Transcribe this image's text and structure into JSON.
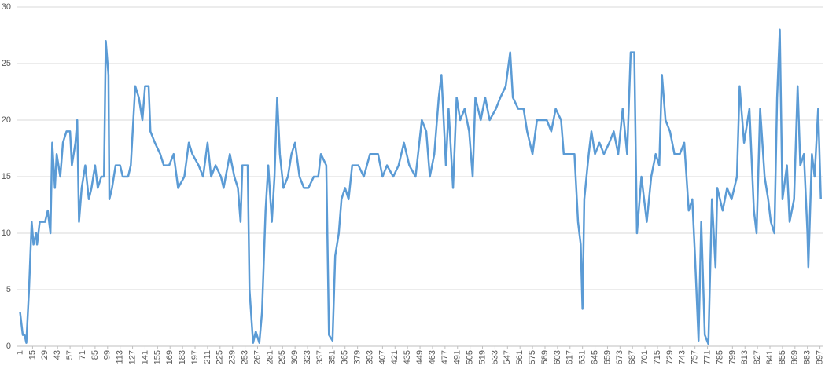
{
  "chart_data": {
    "type": "line",
    "color": "#5b9bd5",
    "grid": true,
    "xlim": [
      -3,
      900
    ],
    "ylim": [
      0,
      30
    ],
    "yticks": [
      0,
      5,
      10,
      15,
      20,
      25,
      30
    ],
    "xticks": [
      1,
      15,
      29,
      43,
      57,
      71,
      85,
      99,
      113,
      127,
      141,
      155,
      169,
      183,
      197,
      211,
      225,
      239,
      253,
      267,
      281,
      295,
      309,
      323,
      337,
      351,
      365,
      379,
      393,
      407,
      421,
      435,
      449,
      463,
      477,
      491,
      505,
      519,
      533,
      547,
      561,
      575,
      589,
      603,
      617,
      631,
      645,
      659,
      673,
      687,
      701,
      715,
      729,
      743,
      757,
      771,
      785,
      799,
      813,
      827,
      841,
      855,
      869,
      883,
      897
    ],
    "x": [
      1,
      4,
      6,
      8,
      11,
      14,
      16,
      19,
      20,
      23,
      29,
      32,
      35,
      37,
      40,
      42,
      46,
      49,
      53,
      57,
      59,
      63,
      65,
      67,
      70,
      74,
      78,
      81,
      85,
      88,
      92,
      95,
      97,
      100,
      101,
      104,
      108,
      113,
      116,
      122,
      125,
      130,
      134,
      138,
      141,
      145,
      147,
      152,
      158,
      162,
      168,
      173,
      178,
      185,
      190,
      194,
      201,
      206,
      211,
      215,
      220,
      226,
      229,
      236,
      241,
      245,
      248,
      250,
      256,
      258,
      262,
      265,
      269,
      272,
      276,
      279,
      283,
      286,
      289,
      292,
      296,
      301,
      305,
      309,
      314,
      319,
      324,
      330,
      335,
      338,
      344,
      347,
      351,
      354,
      358,
      361,
      365,
      369,
      373,
      380,
      386,
      393,
      402,
      407,
      412,
      419,
      425,
      431,
      437,
      444,
      451,
      456,
      460,
      465,
      470,
      473,
      478,
      481,
      486,
      490,
      494,
      499,
      504,
      508,
      511,
      517,
      522,
      527,
      534,
      539,
      545,
      550,
      553,
      559,
      565,
      569,
      575,
      580,
      585,
      591,
      596,
      601,
      607,
      610,
      615,
      622,
      626,
      629,
      631,
      633,
      638,
      641,
      645,
      650,
      655,
      661,
      666,
      671,
      676,
      681,
      685,
      689,
      692,
      697,
      703,
      708,
      713,
      717,
      720,
      724,
      729,
      734,
      740,
      745,
      750,
      754,
      757,
      761,
      764,
      768,
      772,
      776,
      780,
      782,
      788,
      793,
      798,
      804,
      807,
      812,
      818,
      823,
      826,
      830,
      835,
      839,
      842,
      846,
      849,
      852,
      855,
      860,
      863,
      868,
      872,
      875,
      879,
      883,
      884,
      888,
      891,
      895,
      898
    ],
    "series": [
      {
        "values": [
          3,
          1,
          1,
          0.3,
          5,
          11,
          9,
          10,
          9,
          11,
          11,
          12,
          10,
          18,
          14,
          17,
          15,
          18,
          19,
          19,
          16,
          18,
          20,
          11,
          14,
          16,
          13,
          14,
          16,
          14,
          15,
          15,
          27,
          24,
          13,
          14,
          16,
          16,
          15,
          15,
          16,
          23,
          22,
          20,
          23,
          23,
          19,
          18,
          17,
          16,
          16,
          17,
          14,
          15,
          18,
          17,
          16,
          15,
          18,
          15,
          16,
          15,
          14,
          17,
          15,
          14,
          11,
          16,
          16,
          5,
          0.3,
          1.3,
          0.3,
          3,
          12,
          16,
          11,
          15,
          22,
          17,
          14,
          15,
          17,
          18,
          15,
          14,
          14,
          15,
          15,
          17,
          16,
          1,
          0.5,
          8,
          10,
          13,
          14,
          13,
          16,
          16,
          15,
          17,
          17,
          15,
          16,
          15,
          16,
          18,
          16,
          15,
          20,
          19,
          15,
          17,
          22,
          24,
          16,
          21,
          14,
          22,
          20,
          21,
          19,
          15,
          22,
          20,
          22,
          20,
          21,
          22,
          23,
          26,
          22,
          21,
          21,
          19,
          17,
          20,
          20,
          20,
          19,
          21,
          20,
          17,
          17,
          17,
          11,
          9,
          3.3,
          13,
          17,
          19,
          17,
          18,
          17,
          18,
          19,
          17,
          21,
          17,
          26,
          26,
          10,
          15,
          11,
          15,
          17,
          16,
          24,
          20,
          19,
          17,
          17,
          18,
          12,
          13,
          8,
          0.5,
          11,
          1,
          0.2,
          13,
          7,
          14,
          12,
          14,
          13,
          15,
          23,
          18,
          21,
          12,
          10,
          21,
          15,
          13,
          11,
          10,
          22,
          28,
          13,
          16,
          11,
          13,
          23,
          16,
          17,
          10,
          7,
          17,
          15,
          21,
          13
        ]
      }
    ]
  }
}
